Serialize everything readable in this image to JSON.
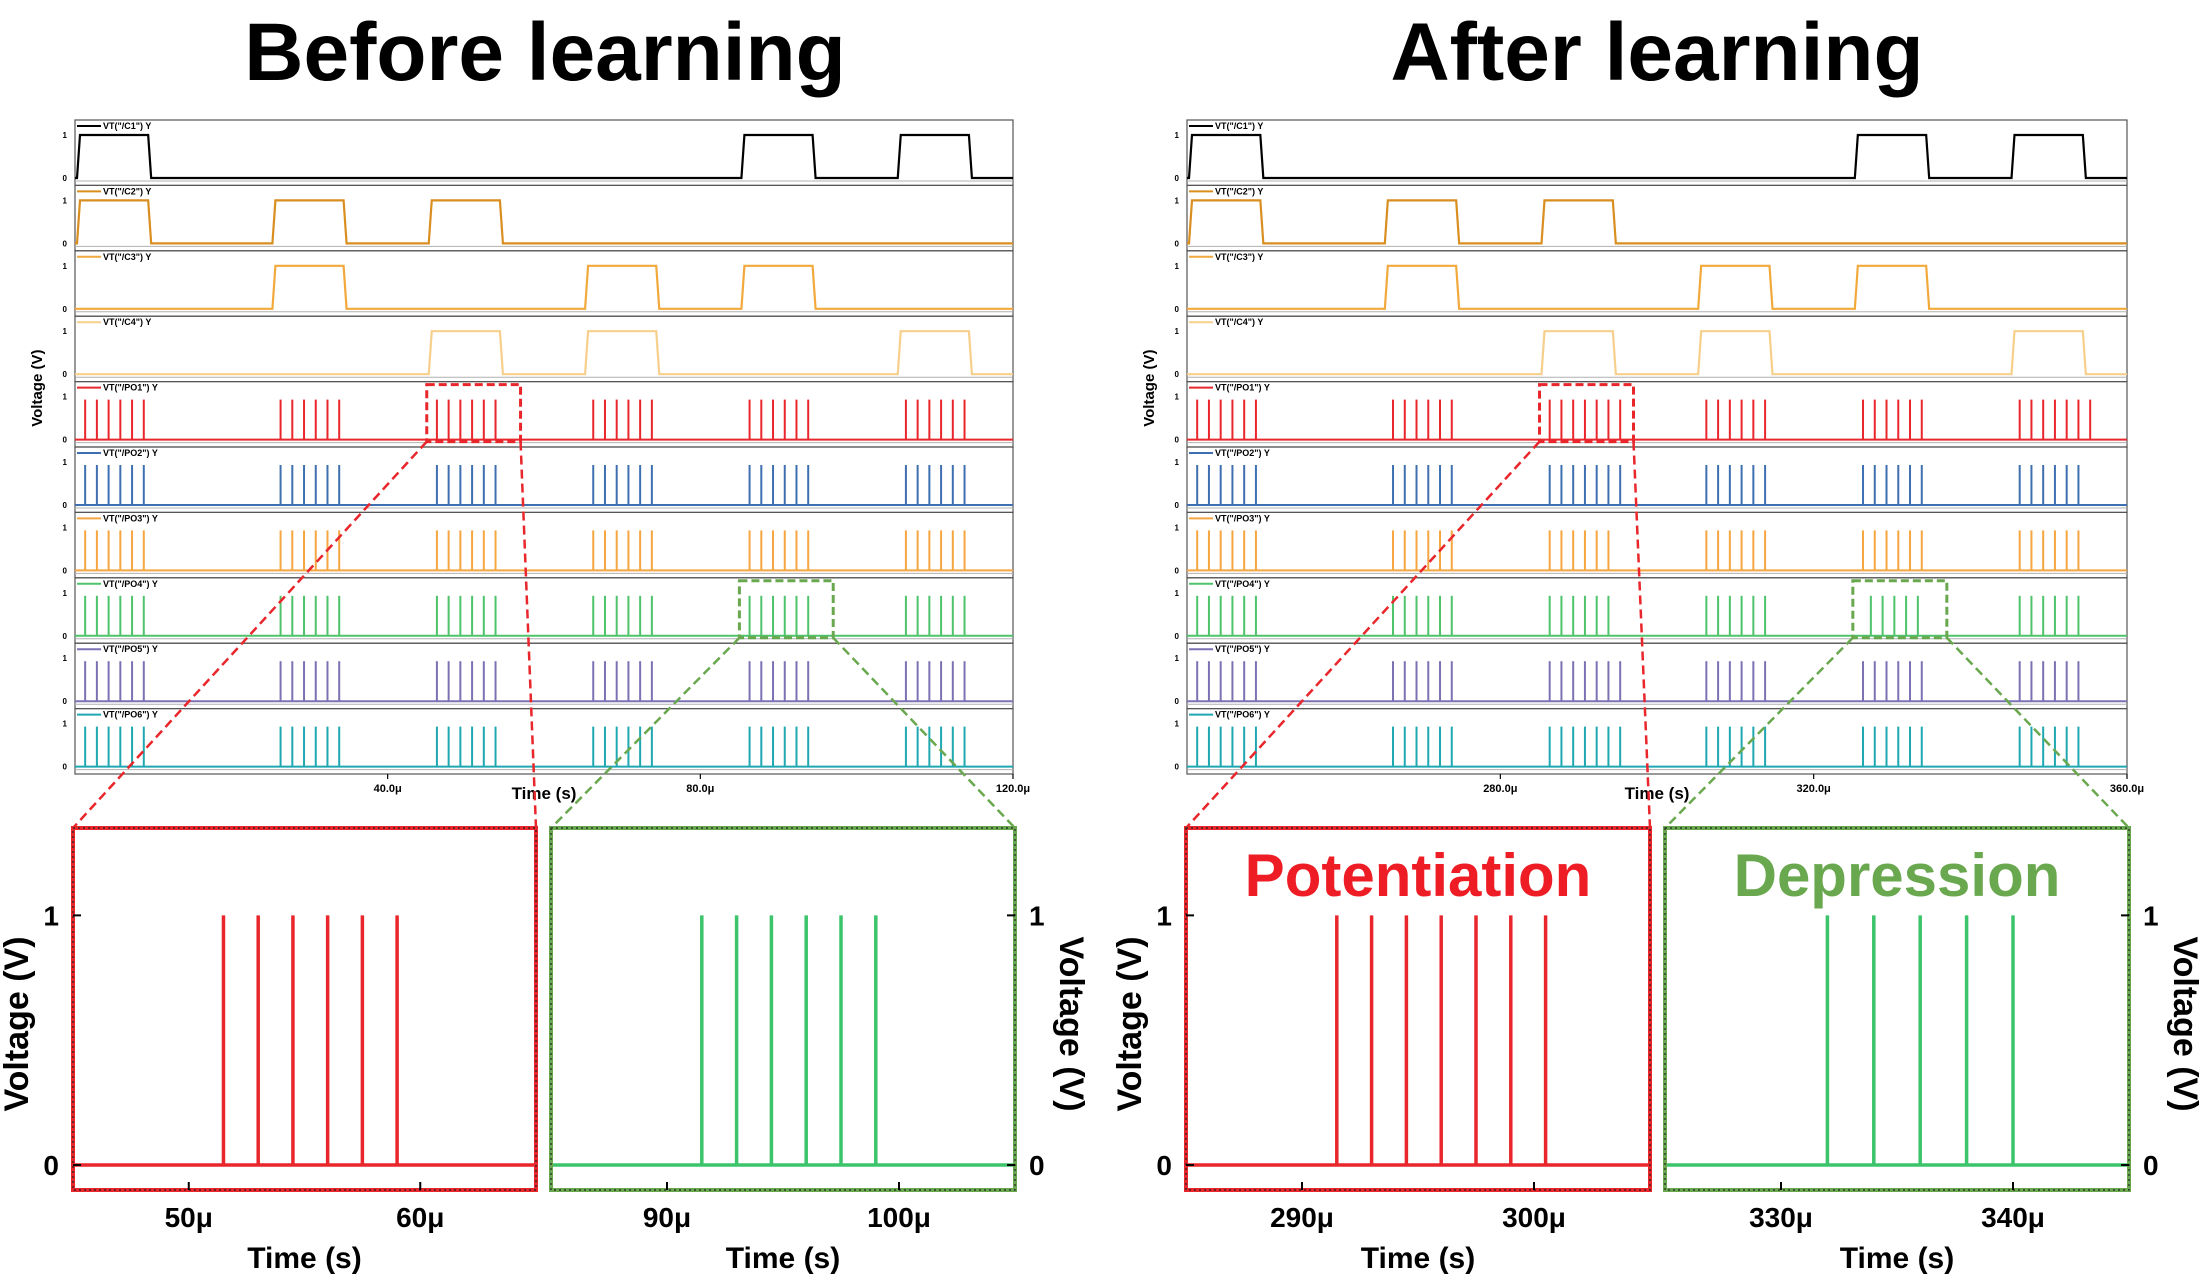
{
  "colors": {
    "C1": "#000000",
    "C2": "#d98e20",
    "C3": "#f2a93b",
    "C4": "#f7cf8c",
    "PO1": "#e8262b",
    "PO2": "#3e6fb0",
    "PO3": "#f5a641",
    "PO4": "#4ec36a",
    "PO5": "#7b72b3",
    "PO6": "#1fa7b2",
    "zoom_red": "#e8262b",
    "zoom_green": "#6aa84f",
    "potentiation_text": "#ee1c24",
    "depression_text": "#6aa84f",
    "zoom_green_trace": "#3cc46a"
  },
  "chart_data": [
    {
      "type": "line",
      "id": "before-overview",
      "title": "Before learning",
      "xlabel": "Time (s)",
      "ylabel": "Voltage (V)",
      "xlim": [
        0,
        120
      ],
      "x_unit": "μs",
      "x_ticks": [
        40,
        80,
        120
      ],
      "x_tick_labels": [
        "40.0μ",
        "80.0μ",
        "120.0μ"
      ],
      "series": [
        {
          "name": "VT(\"/C1\") Y",
          "key": "C1",
          "y_ticks": [
            "1",
            "0"
          ],
          "kind": "pulse",
          "intervals": [
            [
              0,
              10
            ],
            [
              85,
              95
            ],
            [
              105,
              115
            ]
          ]
        },
        {
          "name": "VT(\"/C2\") Y",
          "key": "C2",
          "y_ticks": [
            "1",
            "0"
          ],
          "kind": "pulse",
          "intervals": [
            [
              0,
              10
            ],
            [
              25,
              35
            ],
            [
              45,
              55
            ]
          ]
        },
        {
          "name": "VT(\"/C3\") Y",
          "key": "C3",
          "y_ticks": [
            "1",
            "0"
          ],
          "kind": "pulse",
          "intervals": [
            [
              25,
              35
            ],
            [
              65,
              75
            ],
            [
              85,
              95
            ]
          ]
        },
        {
          "name": "VT(\"/C4\") Y",
          "key": "C4",
          "y_ticks": [
            "1",
            "0"
          ],
          "kind": "pulse",
          "intervals": [
            [
              45,
              55
            ],
            [
              65,
              75
            ],
            [
              105,
              115
            ]
          ]
        },
        {
          "name": "VT(\"/PO1\") Y",
          "key": "PO1",
          "y_ticks": [
            "1",
            "0"
          ],
          "kind": "spikes",
          "bursts": [
            {
              "start": 1,
              "count": 6
            },
            {
              "start": 26,
              "count": 6
            },
            {
              "start": 46,
              "count": 6
            },
            {
              "start": 66,
              "count": 6
            },
            {
              "start": 86,
              "count": 6
            },
            {
              "start": 106,
              "count": 6
            }
          ]
        },
        {
          "name": "VT(\"/PO2\") Y",
          "key": "PO2",
          "y_ticks": [
            "1",
            "0"
          ],
          "kind": "spikes",
          "bursts": [
            {
              "start": 1,
              "count": 6
            },
            {
              "start": 26,
              "count": 6
            },
            {
              "start": 46,
              "count": 6
            },
            {
              "start": 66,
              "count": 6
            },
            {
              "start": 86,
              "count": 6
            },
            {
              "start": 106,
              "count": 6
            }
          ]
        },
        {
          "name": "VT(\"/PO3\") Y",
          "key": "PO3",
          "y_ticks": [
            "1",
            "0"
          ],
          "kind": "spikes",
          "bursts": [
            {
              "start": 1,
              "count": 6
            },
            {
              "start": 26,
              "count": 6
            },
            {
              "start": 46,
              "count": 6
            },
            {
              "start": 66,
              "count": 6
            },
            {
              "start": 86,
              "count": 6
            },
            {
              "start": 106,
              "count": 6
            }
          ]
        },
        {
          "name": "VT(\"/PO4\") Y",
          "key": "PO4",
          "y_ticks": [
            "1",
            "0"
          ],
          "kind": "spikes",
          "bursts": [
            {
              "start": 1,
              "count": 6
            },
            {
              "start": 26,
              "count": 6
            },
            {
              "start": 46,
              "count": 6
            },
            {
              "start": 66,
              "count": 6
            },
            {
              "start": 86,
              "count": 6
            },
            {
              "start": 106,
              "count": 6
            }
          ]
        },
        {
          "name": "VT(\"/PO5\") Y",
          "key": "PO5",
          "y_ticks": [
            "1",
            "0"
          ],
          "kind": "spikes",
          "bursts": [
            {
              "start": 1,
              "count": 6
            },
            {
              "start": 26,
              "count": 6
            },
            {
              "start": 46,
              "count": 6
            },
            {
              "start": 66,
              "count": 6
            },
            {
              "start": 86,
              "count": 6
            },
            {
              "start": 106,
              "count": 6
            }
          ]
        },
        {
          "name": "VT(\"/PO6\") Y",
          "key": "PO6",
          "y_ticks": [
            "1",
            "0"
          ],
          "kind": "spikes",
          "bursts": [
            {
              "start": 1,
              "count": 6
            },
            {
              "start": 26,
              "count": 6
            },
            {
              "start": 46,
              "count": 6
            },
            {
              "start": 66,
              "count": 6
            },
            {
              "start": 86,
              "count": 6
            },
            {
              "start": 106,
              "count": 6
            }
          ]
        }
      ],
      "zoom_regions": [
        {
          "trace": "PO1",
          "x_range": [
            45,
            57
          ],
          "color": "zoom_red"
        },
        {
          "trace": "PO4",
          "x_range": [
            85,
            97
          ],
          "color": "zoom_green"
        }
      ]
    },
    {
      "type": "line",
      "id": "after-overview",
      "title": "After learning",
      "xlabel": "Time (s)",
      "ylabel": "Voltage (V)",
      "xlim": [
        240,
        360
      ],
      "x_unit": "μs",
      "x_ticks": [
        280,
        320,
        360
      ],
      "x_tick_labels": [
        "280.0μ",
        "320.0μ",
        "360.0μ"
      ],
      "series": [
        {
          "name": "VT(\"/C1\") Y",
          "key": "C1",
          "y_ticks": [
            "1",
            "0"
          ],
          "kind": "pulse",
          "intervals": [
            [
              240,
              250
            ],
            [
              325,
              335
            ],
            [
              345,
              355
            ]
          ]
        },
        {
          "name": "VT(\"/C2\") Y",
          "key": "C2",
          "y_ticks": [
            "1",
            "0"
          ],
          "kind": "pulse",
          "intervals": [
            [
              240,
              250
            ],
            [
              265,
              275
            ],
            [
              285,
              295
            ]
          ]
        },
        {
          "name": "VT(\"/C3\") Y",
          "key": "C3",
          "y_ticks": [
            "1",
            "0"
          ],
          "kind": "pulse",
          "intervals": [
            [
              265,
              275
            ],
            [
              305,
              315
            ],
            [
              325,
              335
            ]
          ]
        },
        {
          "name": "VT(\"/C4\") Y",
          "key": "C4",
          "y_ticks": [
            "1",
            "0"
          ],
          "kind": "pulse",
          "intervals": [
            [
              285,
              295
            ],
            [
              305,
              315
            ],
            [
              345,
              355
            ]
          ]
        },
        {
          "name": "VT(\"/PO1\") Y",
          "key": "PO1",
          "y_ticks": [
            "1",
            "0"
          ],
          "kind": "spikes",
          "bursts": [
            {
              "start": 241,
              "count": 6
            },
            {
              "start": 266,
              "count": 6
            },
            {
              "start": 286,
              "count": 7
            },
            {
              "start": 306,
              "count": 6
            },
            {
              "start": 326,
              "count": 6
            },
            {
              "start": 346,
              "count": 7
            }
          ]
        },
        {
          "name": "VT(\"/PO2\") Y",
          "key": "PO2",
          "y_ticks": [
            "1",
            "0"
          ],
          "kind": "spikes",
          "bursts": [
            {
              "start": 241,
              "count": 6
            },
            {
              "start": 266,
              "count": 6
            },
            {
              "start": 286,
              "count": 7
            },
            {
              "start": 306,
              "count": 6
            },
            {
              "start": 326,
              "count": 6
            },
            {
              "start": 346,
              "count": 6
            }
          ]
        },
        {
          "name": "VT(\"/PO3\") Y",
          "key": "PO3",
          "y_ticks": [
            "1",
            "0"
          ],
          "kind": "spikes",
          "bursts": [
            {
              "start": 241,
              "count": 6
            },
            {
              "start": 266,
              "count": 6
            },
            {
              "start": 286,
              "count": 6
            },
            {
              "start": 306,
              "count": 6
            },
            {
              "start": 326,
              "count": 6
            },
            {
              "start": 346,
              "count": 6
            }
          ]
        },
        {
          "name": "VT(\"/PO4\") Y",
          "key": "PO4",
          "y_ticks": [
            "1",
            "0"
          ],
          "kind": "spikes",
          "bursts": [
            {
              "start": 241,
              "count": 6
            },
            {
              "start": 266,
              "count": 6
            },
            {
              "start": 286,
              "count": 6
            },
            {
              "start": 306,
              "count": 6
            },
            {
              "start": 327,
              "count": 5
            },
            {
              "start": 346,
              "count": 6
            }
          ]
        },
        {
          "name": "VT(\"/PO5\") Y",
          "key": "PO5",
          "y_ticks": [
            "1",
            "0"
          ],
          "kind": "spikes",
          "bursts": [
            {
              "start": 241,
              "count": 6
            },
            {
              "start": 266,
              "count": 6
            },
            {
              "start": 286,
              "count": 7
            },
            {
              "start": 306,
              "count": 6
            },
            {
              "start": 326,
              "count": 6
            },
            {
              "start": 346,
              "count": 6
            }
          ]
        },
        {
          "name": "VT(\"/PO6\") Y",
          "key": "PO6",
          "y_ticks": [
            "1",
            "0"
          ],
          "kind": "spikes",
          "bursts": [
            {
              "start": 241,
              "count": 6
            },
            {
              "start": 266,
              "count": 6
            },
            {
              "start": 286,
              "count": 7
            },
            {
              "start": 306,
              "count": 6
            },
            {
              "start": 326,
              "count": 6
            },
            {
              "start": 346,
              "count": 6
            }
          ]
        }
      ],
      "zoom_regions": [
        {
          "trace": "PO1",
          "x_range": [
            285,
            297
          ],
          "color": "zoom_red"
        },
        {
          "trace": "PO4",
          "x_range": [
            325,
            337
          ],
          "color": "zoom_green"
        }
      ]
    },
    {
      "type": "line",
      "id": "before-zoom-potentiation",
      "title": "",
      "xlabel": "Time (s)",
      "ylabel": "Voltage (V)",
      "ylabel_side": "left",
      "frame_color": "zoom_red",
      "trace_color": "PO1",
      "xlim": [
        45,
        65
      ],
      "ylim": [
        -0.1,
        1.35
      ],
      "x_ticks": [
        50,
        60
      ],
      "x_tick_labels": [
        "50μ",
        "60μ"
      ],
      "y_ticks": [
        0,
        1
      ],
      "y_tick_labels": [
        "0",
        "1"
      ],
      "spikes_x": [
        51.5,
        53.0,
        54.5,
        56.0,
        57.5,
        59.0
      ]
    },
    {
      "type": "line",
      "id": "before-zoom-depression",
      "title": "",
      "xlabel": "Time (s)",
      "ylabel": "Voltage (V)",
      "ylabel_side": "right",
      "frame_color": "zoom_green",
      "trace_color": "zoom_green_trace",
      "xlim": [
        85,
        105
      ],
      "ylim": [
        -0.1,
        1.35
      ],
      "x_ticks": [
        90,
        100
      ],
      "x_tick_labels": [
        "90μ",
        "100μ"
      ],
      "y_ticks": [
        0,
        1
      ],
      "y_tick_labels": [
        "0",
        "1"
      ],
      "spikes_x": [
        91.5,
        93.0,
        94.5,
        96.0,
        97.5,
        99.0
      ]
    },
    {
      "type": "line",
      "id": "after-zoom-potentiation",
      "title": "Potentiation",
      "title_color": "potentiation_text",
      "xlabel": "Time (s)",
      "ylabel": "Voltage (V)",
      "ylabel_side": "left",
      "frame_color": "zoom_red",
      "trace_color": "PO1",
      "xlim": [
        285,
        305
      ],
      "ylim": [
        -0.1,
        1.35
      ],
      "x_ticks": [
        290,
        300
      ],
      "x_tick_labels": [
        "290μ",
        "300μ"
      ],
      "y_ticks": [
        0,
        1
      ],
      "y_tick_labels": [
        "0",
        "1"
      ],
      "spikes_x": [
        291.5,
        293.0,
        294.5,
        296.0,
        297.5,
        299.0,
        300.5
      ]
    },
    {
      "type": "line",
      "id": "after-zoom-depression",
      "title": "Depression",
      "title_color": "depression_text",
      "xlabel": "Time (s)",
      "ylabel": "Voltage (V)",
      "ylabel_side": "right",
      "frame_color": "zoom_green",
      "trace_color": "zoom_green_trace",
      "xlim": [
        325,
        345
      ],
      "ylim": [
        -0.1,
        1.35
      ],
      "x_ticks": [
        330,
        340
      ],
      "x_tick_labels": [
        "330μ",
        "340μ"
      ],
      "y_ticks": [
        0,
        1
      ],
      "y_tick_labels": [
        "0",
        "1"
      ],
      "spikes_x": [
        332.0,
        334.0,
        336.0,
        338.0,
        340.0
      ]
    }
  ]
}
